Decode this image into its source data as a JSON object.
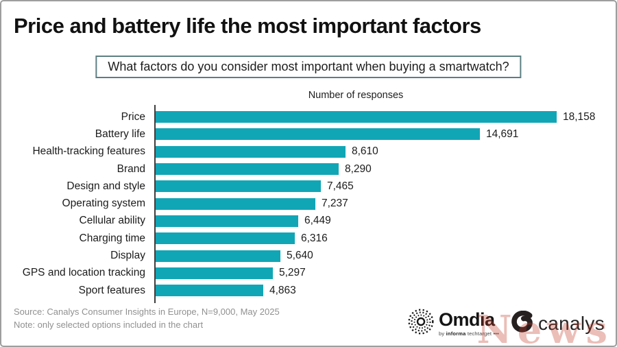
{
  "header": {
    "title": "Price and battery life the most important factors"
  },
  "question": {
    "text": "What factors do you consider most important when buying a smartwatch?"
  },
  "chart_data": {
    "type": "bar",
    "orientation": "horizontal",
    "title": "Number of responses",
    "categories": [
      "Price",
      "Battery life",
      "Health-tracking features",
      "Brand",
      "Design and style",
      "Operating system",
      "Cellular ability",
      "Charging time",
      "Display",
      "GPS and location tracking",
      "Sport features"
    ],
    "values": [
      18158,
      14691,
      8610,
      8290,
      7465,
      7237,
      6449,
      6316,
      5640,
      5297,
      4863
    ],
    "value_labels": [
      "18,158",
      "14,691",
      "8,610",
      "8,290",
      "7,465",
      "7,237",
      "6,449",
      "6,316",
      "5,640",
      "5,297",
      "4,863"
    ],
    "xlim": [
      0,
      18158
    ],
    "bar_color": "#11A6B6",
    "grid": false,
    "legend": null
  },
  "footer": {
    "source": "Source: Canalys Consumer Insights in Europe, N=9,000, May 2025",
    "note": "Note: only selected options included in the chart"
  },
  "logos": {
    "omdia": {
      "name": "Omdia",
      "tagline_by": "by ",
      "tagline_informa": "informa",
      "tagline_rest": " techtarget •••"
    },
    "canalys": {
      "name": "canalys"
    }
  },
  "watermark": {
    "text": "News",
    "color": "#c13a26"
  }
}
